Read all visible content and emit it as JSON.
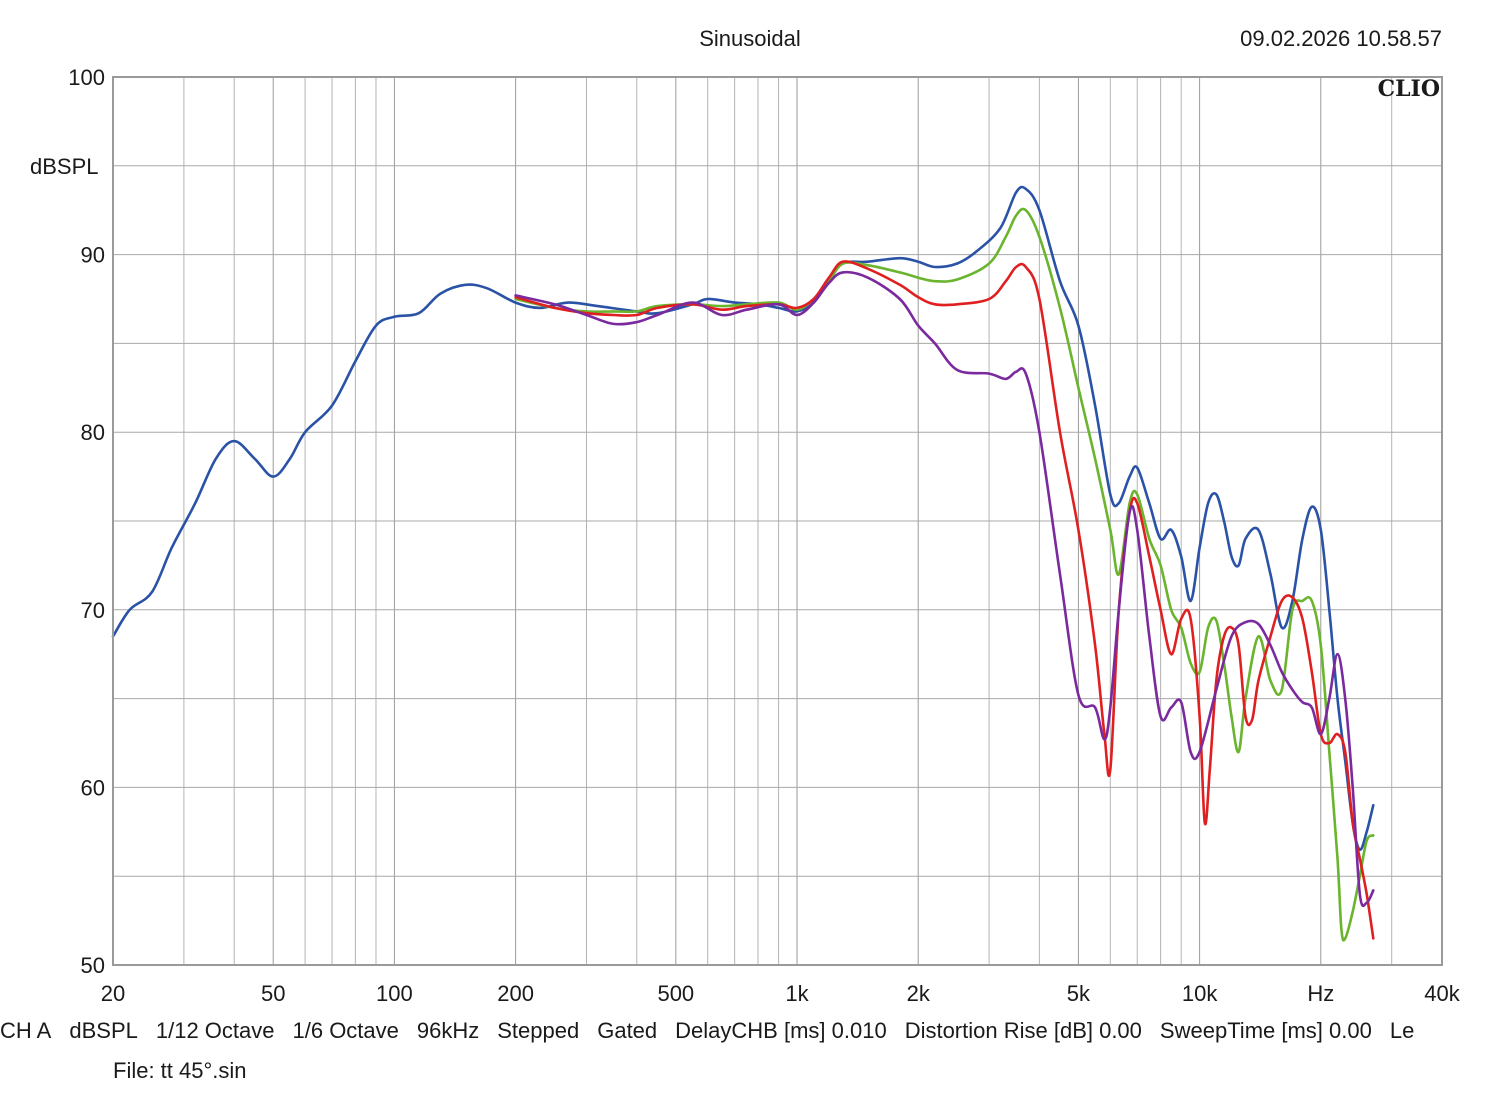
{
  "header": {
    "title": "Sinusoidal",
    "timestamp": "09.02.2026 10.58.57",
    "brand": "CLIO"
  },
  "status_bar": {
    "items": [
      "CH A",
      "dBSPL",
      "1/12 Octave",
      "1/6 Octave",
      "96kHz",
      "Stepped",
      "Gated",
      "DelayCHB [ms] 0.010",
      "Distortion Rise [dB] 0.00",
      "SweepTime [ms] 0.00",
      "Le"
    ]
  },
  "file_line": "File: tt 45°.sin",
  "chart_data": {
    "type": "line",
    "title": "Sinusoidal",
    "xlabel": "Hz",
    "ylabel": "dBSPL",
    "xscale": "log",
    "xlim": [
      20,
      40000
    ],
    "ylim": [
      50,
      100
    ],
    "grid": true,
    "x_ticks": [
      20,
      50,
      100,
      200,
      500,
      1000,
      2000,
      5000,
      10000,
      20000,
      40000
    ],
    "x_tick_labels": [
      "20",
      "50",
      "100",
      "200",
      "500",
      "1k",
      "2k",
      "5k",
      "10k",
      "Hz",
      "40k"
    ],
    "y_ticks": [
      50,
      60,
      70,
      80,
      90,
      100
    ],
    "y_tick_labels": [
      "50",
      "60",
      "70",
      "80",
      "90",
      "100"
    ],
    "series": [
      {
        "name": "blue",
        "color": "#2a52a6",
        "points": [
          [
            20,
            68.5
          ],
          [
            22,
            70
          ],
          [
            25,
            71
          ],
          [
            28,
            73.5
          ],
          [
            32,
            76
          ],
          [
            36,
            78.5
          ],
          [
            40,
            79.5
          ],
          [
            45,
            78.5
          ],
          [
            50,
            77.5
          ],
          [
            55,
            78.5
          ],
          [
            60,
            80
          ],
          [
            70,
            81.5
          ],
          [
            80,
            84
          ],
          [
            90,
            86
          ],
          [
            100,
            86.5
          ],
          [
            115,
            86.7
          ],
          [
            130,
            87.8
          ],
          [
            150,
            88.3
          ],
          [
            170,
            88.1
          ],
          [
            200,
            87.3
          ],
          [
            230,
            87
          ],
          [
            270,
            87.3
          ],
          [
            320,
            87.1
          ],
          [
            400,
            86.8
          ],
          [
            450,
            86.7
          ],
          [
            550,
            87.2
          ],
          [
            600,
            87.5
          ],
          [
            700,
            87.3
          ],
          [
            800,
            87.2
          ],
          [
            900,
            87
          ],
          [
            1000,
            86.8
          ],
          [
            1100,
            87.3
          ],
          [
            1200,
            88.5
          ],
          [
            1300,
            89.5
          ],
          [
            1500,
            89.6
          ],
          [
            1800,
            89.8
          ],
          [
            2000,
            89.6
          ],
          [
            2200,
            89.3
          ],
          [
            2500,
            89.5
          ],
          [
            2800,
            90.2
          ],
          [
            3200,
            91.5
          ],
          [
            3500,
            93.5
          ],
          [
            3700,
            93.7
          ],
          [
            4000,
            92.5
          ],
          [
            4500,
            88.5
          ],
          [
            5000,
            86
          ],
          [
            5500,
            81.5
          ],
          [
            6000,
            76.5
          ],
          [
            6300,
            76
          ],
          [
            6700,
            77.5
          ],
          [
            7000,
            78
          ],
          [
            7500,
            76
          ],
          [
            8000,
            74
          ],
          [
            8500,
            74.5
          ],
          [
            9000,
            73
          ],
          [
            9500,
            70.5
          ],
          [
            10000,
            73.5
          ],
          [
            10500,
            76
          ],
          [
            11000,
            76.5
          ],
          [
            11500,
            75
          ],
          [
            12000,
            73
          ],
          [
            12500,
            72.5
          ],
          [
            13000,
            74
          ],
          [
            14000,
            74.5
          ],
          [
            15000,
            72
          ],
          [
            16000,
            69
          ],
          [
            17000,
            70.5
          ],
          [
            18000,
            74
          ],
          [
            19000,
            75.8
          ],
          [
            20000,
            74.5
          ],
          [
            21000,
            70
          ],
          [
            22000,
            65
          ],
          [
            23000,
            61.5
          ],
          [
            24000,
            58
          ],
          [
            25000,
            56.5
          ],
          [
            26000,
            57.5
          ],
          [
            27000,
            59
          ]
        ]
      },
      {
        "name": "green",
        "color": "#6ab42e",
        "points": [
          [
            200,
            87.5
          ],
          [
            250,
            87
          ],
          [
            300,
            86.8
          ],
          [
            350,
            86.8
          ],
          [
            400,
            86.8
          ],
          [
            450,
            87.1
          ],
          [
            550,
            87.2
          ],
          [
            650,
            87.1
          ],
          [
            750,
            87.2
          ],
          [
            900,
            87.3
          ],
          [
            1000,
            86.9
          ],
          [
            1100,
            87.5
          ],
          [
            1200,
            88.5
          ],
          [
            1300,
            89.5
          ],
          [
            1500,
            89.4
          ],
          [
            1800,
            89
          ],
          [
            2000,
            88.7
          ],
          [
            2200,
            88.5
          ],
          [
            2500,
            88.6
          ],
          [
            3000,
            89.5
          ],
          [
            3300,
            91
          ],
          [
            3500,
            92.2
          ],
          [
            3700,
            92.5
          ],
          [
            4000,
            91
          ],
          [
            4500,
            87
          ],
          [
            5000,
            82.5
          ],
          [
            5500,
            78.5
          ],
          [
            6000,
            74.5
          ],
          [
            6300,
            72
          ],
          [
            6700,
            76
          ],
          [
            7000,
            76.5
          ],
          [
            7500,
            74
          ],
          [
            8000,
            72.5
          ],
          [
            8500,
            70
          ],
          [
            9000,
            69
          ],
          [
            9500,
            67
          ],
          [
            10000,
            66.5
          ],
          [
            10500,
            69
          ],
          [
            11000,
            69.4
          ],
          [
            11500,
            67
          ],
          [
            12000,
            64
          ],
          [
            12500,
            62
          ],
          [
            13000,
            65
          ],
          [
            14000,
            68.5
          ],
          [
            15000,
            66
          ],
          [
            16000,
            65.5
          ],
          [
            17000,
            70
          ],
          [
            18000,
            70.5
          ],
          [
            19000,
            70.5
          ],
          [
            20000,
            68
          ],
          [
            21000,
            62
          ],
          [
            22000,
            56
          ],
          [
            22500,
            52
          ],
          [
            23000,
            51.5
          ],
          [
            24000,
            53
          ],
          [
            25000,
            55
          ],
          [
            26000,
            57
          ],
          [
            27000,
            57.3
          ]
        ]
      },
      {
        "name": "red",
        "color": "#e02020",
        "points": [
          [
            200,
            87.6
          ],
          [
            250,
            87
          ],
          [
            300,
            86.7
          ],
          [
            350,
            86.6
          ],
          [
            400,
            86.6
          ],
          [
            450,
            87
          ],
          [
            550,
            87.2
          ],
          [
            650,
            86.9
          ],
          [
            750,
            87.1
          ],
          [
            900,
            87.2
          ],
          [
            1000,
            87
          ],
          [
            1100,
            87.5
          ],
          [
            1200,
            88.7
          ],
          [
            1300,
            89.6
          ],
          [
            1500,
            89.2
          ],
          [
            1800,
            88.3
          ],
          [
            2000,
            87.6
          ],
          [
            2200,
            87.2
          ],
          [
            2500,
            87.2
          ],
          [
            3000,
            87.5
          ],
          [
            3300,
            88.5
          ],
          [
            3500,
            89.3
          ],
          [
            3700,
            89.3
          ],
          [
            4000,
            87.5
          ],
          [
            4500,
            80
          ],
          [
            5000,
            74.5
          ],
          [
            5500,
            68
          ],
          [
            5800,
            63
          ],
          [
            6000,
            61
          ],
          [
            6300,
            70
          ],
          [
            6700,
            75.5
          ],
          [
            7000,
            76
          ],
          [
            7500,
            73
          ],
          [
            8000,
            70
          ],
          [
            8500,
            67.5
          ],
          [
            9000,
            69.5
          ],
          [
            9500,
            69.5
          ],
          [
            10000,
            64
          ],
          [
            10300,
            58
          ],
          [
            10600,
            61
          ],
          [
            11000,
            66
          ],
          [
            11500,
            68.5
          ],
          [
            12000,
            69
          ],
          [
            12500,
            68
          ],
          [
            13000,
            64
          ],
          [
            13500,
            63.8
          ],
          [
            14000,
            66
          ],
          [
            15000,
            68.5
          ],
          [
            16000,
            70.5
          ],
          [
            17000,
            70.7
          ],
          [
            18000,
            69.5
          ],
          [
            19000,
            66.5
          ],
          [
            20000,
            63
          ],
          [
            21000,
            62.5
          ],
          [
            22000,
            63
          ],
          [
            23000,
            62
          ],
          [
            24000,
            58
          ],
          [
            25000,
            56
          ],
          [
            26000,
            54
          ],
          [
            27000,
            51.5
          ]
        ]
      },
      {
        "name": "purple",
        "color": "#7a2a9e",
        "points": [
          [
            200,
            87.7
          ],
          [
            250,
            87.2
          ],
          [
            300,
            86.6
          ],
          [
            350,
            86.1
          ],
          [
            400,
            86.2
          ],
          [
            450,
            86.6
          ],
          [
            550,
            87.3
          ],
          [
            650,
            86.6
          ],
          [
            750,
            86.9
          ],
          [
            900,
            87.2
          ],
          [
            1000,
            86.6
          ],
          [
            1100,
            87.3
          ],
          [
            1200,
            88.4
          ],
          [
            1300,
            89
          ],
          [
            1500,
            88.7
          ],
          [
            1800,
            87.5
          ],
          [
            2000,
            86
          ],
          [
            2200,
            85
          ],
          [
            2500,
            83.5
          ],
          [
            3000,
            83.3
          ],
          [
            3300,
            83
          ],
          [
            3500,
            83.4
          ],
          [
            3700,
            83.3
          ],
          [
            4000,
            80
          ],
          [
            4500,
            72
          ],
          [
            5000,
            65.2
          ],
          [
            5500,
            64.5
          ],
          [
            5800,
            62.7
          ],
          [
            6000,
            64.5
          ],
          [
            6300,
            70
          ],
          [
            6700,
            75.5
          ],
          [
            7000,
            74.5
          ],
          [
            7500,
            68.5
          ],
          [
            8000,
            64
          ],
          [
            8500,
            64.5
          ],
          [
            9000,
            64.8
          ],
          [
            9500,
            62
          ],
          [
            10000,
            62
          ],
          [
            11000,
            65.5
          ],
          [
            12000,
            68.5
          ],
          [
            13000,
            69.3
          ],
          [
            14000,
            69.2
          ],
          [
            15000,
            68
          ],
          [
            16000,
            66.5
          ],
          [
            17000,
            65.5
          ],
          [
            18000,
            64.8
          ],
          [
            19000,
            64.5
          ],
          [
            20000,
            63
          ],
          [
            21000,
            65
          ],
          [
            22000,
            67.5
          ],
          [
            23000,
            65
          ],
          [
            24000,
            60
          ],
          [
            25000,
            54
          ],
          [
            26000,
            53.5
          ],
          [
            27000,
            54.2
          ]
        ]
      }
    ]
  }
}
